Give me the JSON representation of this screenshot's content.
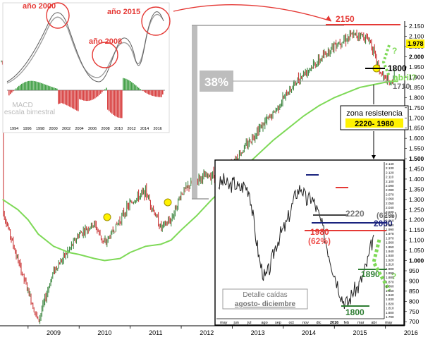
{
  "main_chart": {
    "type": "line",
    "x_ticks": [
      "2009",
      "2010",
      "2011",
      "2012",
      "2013",
      "2014",
      "2015",
      "2016"
    ],
    "y_ticks": [
      "2.150",
      "2.100",
      "2.050",
      "2.000",
      "1.978",
      "1.950",
      "1.900",
      "1.850",
      "1.800",
      "1.750",
      "1.700",
      "1.650",
      "1.600",
      "1.550",
      "1.500",
      "1.450",
      "1.400",
      "1.350",
      "1.300",
      "1.250",
      "1.200",
      "1.150",
      "1.100",
      "1.050",
      "1.000",
      "950",
      "900",
      "850",
      "800",
      "750",
      "700"
    ],
    "last_price_label": "1.978",
    "approx_series": {
      "x": [
        2008.5,
        2008.8,
        2009.0,
        2009.2,
        2009.5,
        2009.8,
        2010.0,
        2010.3,
        2010.5,
        2010.8,
        2011.0,
        2011.3,
        2011.6,
        2011.8,
        2012.0,
        2012.3,
        2012.6,
        2012.9,
        2013.2,
        2013.5,
        2013.8,
        2014.1,
        2014.4,
        2014.7,
        2015.0,
        2015.3,
        2015.5,
        2015.7,
        2015.9,
        2016.1,
        2016.25
      ],
      "y": [
        1250,
        1000,
        850,
        700,
        950,
        1050,
        1130,
        1180,
        1080,
        1200,
        1280,
        1340,
        1160,
        1200,
        1330,
        1400,
        1420,
        1450,
        1540,
        1640,
        1720,
        1830,
        1920,
        1980,
        2060,
        2100,
        2110,
        2080,
        1920,
        1860,
        1978
      ],
      "moving_average_y": [
        1300,
        1250,
        1200,
        1130,
        1070,
        1040,
        1030,
        1010,
        1000,
        1010,
        1040,
        1070,
        1080,
        1100,
        1150,
        1220,
        1300,
        1370,
        1450,
        1520,
        1590,
        1650,
        1710,
        1760,
        1800,
        1830,
        1850,
        1860,
        1870,
        1880,
        1880
      ]
    },
    "annotations": {
      "pct_label": "38%",
      "level_2150": "2150",
      "level_1800": "1800",
      "level_1710": "1710",
      "april_label": "abril?",
      "question_mark": "?",
      "resistance_title": "zona resistencia",
      "resistance_range": "2220- 1980"
    }
  },
  "macd_inset": {
    "title": "MACD",
    "subtitle": "escala bimestral",
    "x_ticks": [
      "1994",
      "1996",
      "1998",
      "2000",
      "2002",
      "2004",
      "2006",
      "2008",
      "2010",
      "2012",
      "2014",
      "2016"
    ],
    "peak_labels": [
      "año 2000",
      "año 2008",
      "año 2015"
    ]
  },
  "detail_inset": {
    "type": "line",
    "x_ticks": [
      "may",
      "jun",
      "jul",
      "ago",
      "sep",
      "oct",
      "nov",
      "dic",
      "2016",
      "feb",
      "mar",
      "abr",
      "may"
    ],
    "y_ticks": [
      "2.140",
      "2.130",
      "2.120",
      "2.110",
      "2.100",
      "2.090",
      "2.080",
      "2.070",
      "2.060",
      "2.050",
      "2.040",
      "2.030",
      "2.020",
      "2.010",
      "2.000",
      "1.990",
      "1.978",
      "1.970",
      "1.960",
      "1.950",
      "1.940",
      "1.930",
      "1.920",
      "1.910",
      "1.900",
      "1.890",
      "1.880",
      "1.870",
      "1.860",
      "1.850",
      "1.840",
      "1.830",
      "1.820",
      "1.810",
      "1.800",
      "1.790"
    ],
    "approx_series": {
      "x": [
        0,
        1,
        2,
        3,
        4,
        5,
        6,
        7,
        8,
        9,
        10,
        11,
        12,
        13,
        14,
        15,
        16,
        17,
        18,
        19,
        20,
        21,
        22,
        23,
        24,
        25,
        26,
        27,
        28,
        29,
        30
      ],
      "y": [
        2100,
        2110,
        2095,
        2105,
        2090,
        2100,
        2085,
        1990,
        1910,
        1870,
        1900,
        1950,
        1980,
        2000,
        2040,
        2080,
        2095,
        2060,
        2070,
        2040,
        2000,
        1950,
        1900,
        1860,
        1820,
        1810,
        1840,
        1850,
        1880,
        1920,
        1978
      ]
    },
    "labels": {
      "l2220": "2220",
      "p62_right": "(62%)",
      "l2000": "2000",
      "l1980": "1980",
      "p62_left": "(62%)",
      "l1890": "1890",
      "l1800": "1800",
      "question_mark": "?",
      "caption1": "Detalle caídas",
      "caption2": "agosto- diciembre"
    }
  },
  "colors": {
    "price_up": "#2e7d32",
    "price_down": "#c62828",
    "moving_average": "#7ed957",
    "annotation_red": "#e53935",
    "highlight_yellow": "#fff200",
    "gray_block": "#bdbdbd"
  }
}
